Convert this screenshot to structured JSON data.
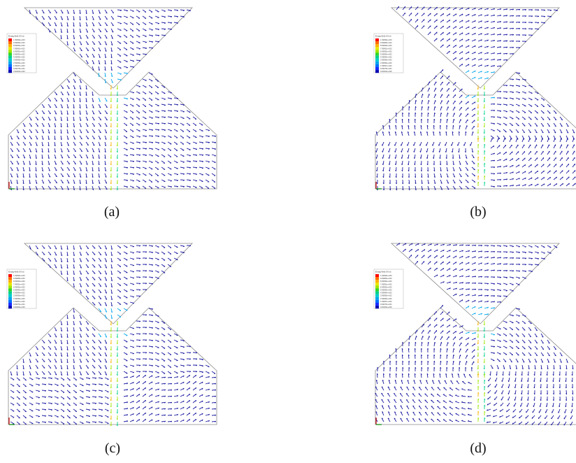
{
  "figure": {
    "panels": [
      {
        "id": "a",
        "caption": "(a)",
        "legend": {
          "title": "Emag-field (V/m)",
          "ticks": [
            "1.09999e+003",
            "9.99989e+002",
            "8.99990e+002",
            "7.99991e+002",
            "6.99992e+002",
            "5.99993e+002",
            "4.99994e+002",
            "3.99995e+002",
            "2.99996e+002",
            "1.99997e+002",
            "9.99975e+001",
            "0.00000e+000"
          ]
        }
      },
      {
        "id": "b",
        "caption": "(b)",
        "legend": {
          "title": "Emag-field (V/m)",
          "ticks": [
            "1.09999e+003",
            "9.99989e+002",
            "8.99990e+002",
            "7.99991e+002",
            "6.99992e+002",
            "5.99993e+002",
            "4.99994e+002",
            "3.99995e+002",
            "2.99996e+002",
            "1.99997e+002",
            "9.99975e+001",
            "0.00000e+000"
          ]
        }
      },
      {
        "id": "c",
        "caption": "(c)",
        "legend": {
          "title": "Emag-field (V/m)",
          "ticks": [
            "1.09999e+003",
            "9.99989e+002",
            "8.99990e+002",
            "7.99991e+002",
            "6.99992e+002",
            "5.99993e+002",
            "4.99994e+002",
            "3.99995e+002",
            "2.99996e+002",
            "1.99997e+002",
            "9.99975e+001",
            "0.00000e+000"
          ]
        }
      },
      {
        "id": "d",
        "caption": "(d)",
        "legend": {
          "title": "Emag-field (V/m)",
          "ticks": [
            "1.09999e+003",
            "9.99989e+002",
            "8.99990e+002",
            "7.99991e+002",
            "6.99992e+002",
            "5.99993e+002",
            "4.99994e+002",
            "3.99995e+002",
            "2.99996e+002",
            "1.99997e+002",
            "9.99975e+001",
            "0.00000e+000"
          ]
        }
      }
    ],
    "colormap": [
      "#ff0000",
      "#ff6a00",
      "#ffb000",
      "#e8e800",
      "#9ee600",
      "#2fd62f",
      "#00d08a",
      "#00cccc",
      "#00a6ee",
      "#0070ff",
      "#1a2bff",
      "#0000b0"
    ],
    "vector_color": "#1a1aa0",
    "outline_color": "#8a8a8a"
  }
}
